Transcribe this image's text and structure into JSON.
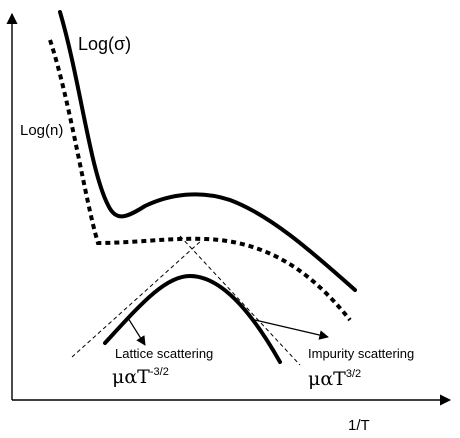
{
  "labels": {
    "log_sigma": "Log(σ)",
    "log_n": "Log(n)",
    "x_axis": "1/T",
    "lattice": "Lattice scattering",
    "impurity": "Impurity scattering",
    "lattice_formula_base": "μαT",
    "lattice_formula_exp": "-3/2",
    "impurity_formula_base": "μαT",
    "impurity_formula_exp": "3/2"
  }
}
